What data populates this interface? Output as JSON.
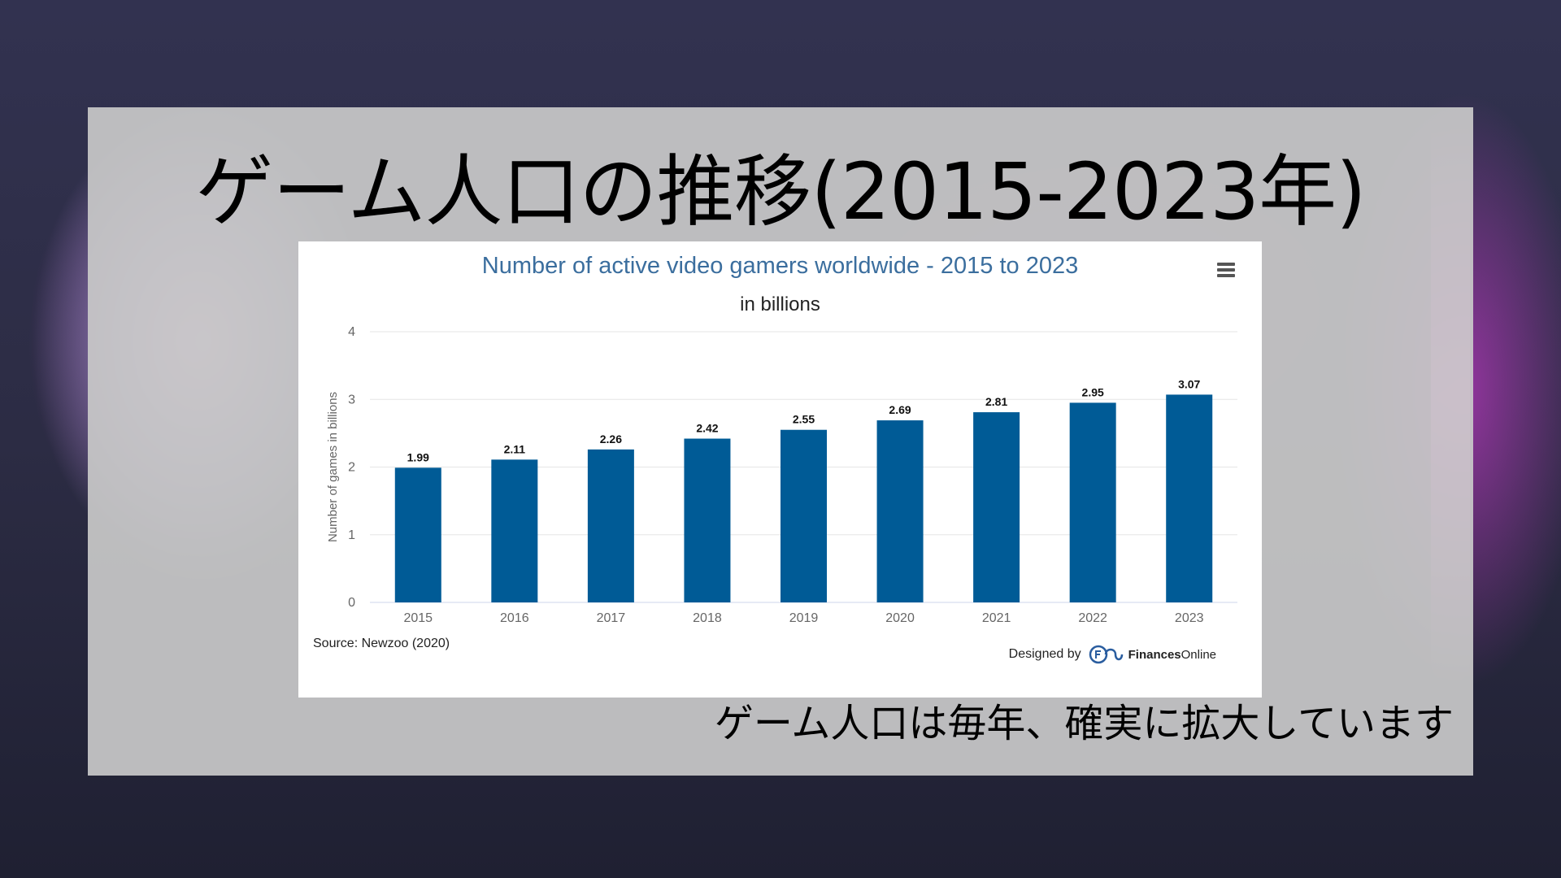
{
  "slide": {
    "title": "ゲーム人口の推移(2015-2023年)",
    "caption": "ゲーム人口は毎年、確実に拡大しています"
  },
  "chart_card": {
    "source": "Source: Newzoo (2020)",
    "designed_by": "Designed by",
    "brand_bold": "Finances",
    "brand_rest": "Online",
    "menu_icon": "hamburger-menu-icon"
  },
  "chart_data": {
    "type": "bar",
    "title": "Number of active video gamers worldwide - 2015 to 2023",
    "subtitle": "in billions",
    "xlabel": "",
    "ylabel": "Number of games in billions",
    "categories": [
      "2015",
      "2016",
      "2017",
      "2018",
      "2019",
      "2020",
      "2021",
      "2022",
      "2023"
    ],
    "values": [
      1.99,
      2.11,
      2.26,
      2.42,
      2.55,
      2.69,
      2.81,
      2.95,
      3.07
    ],
    "data_labels": [
      "1.99",
      "2.11",
      "2.26",
      "2.42",
      "2.55",
      "2.69",
      "2.81",
      "2.95",
      "3.07"
    ],
    "ylim": [
      0,
      4
    ],
    "yticks": [
      "0",
      "1",
      "2",
      "3",
      "4"
    ],
    "grid": true,
    "legend": "none",
    "bar_color": "#005b96",
    "title_color": "#3b6e9e"
  }
}
